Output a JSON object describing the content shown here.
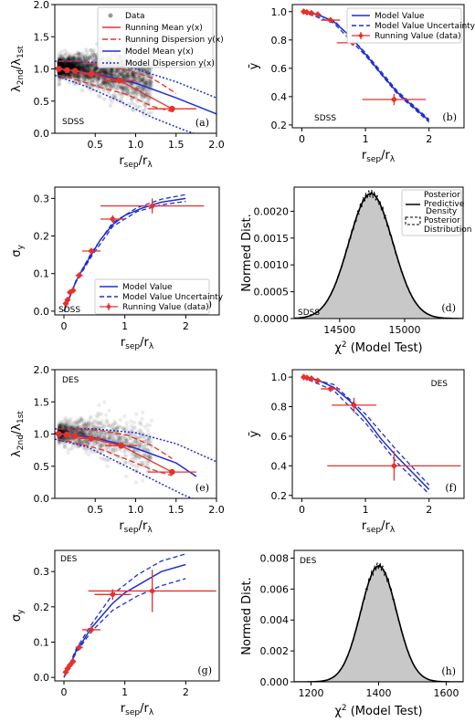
{
  "chart_data": [
    {
      "id": "a",
      "type": "scatter",
      "xlabel": "r_sep/r_λ",
      "ylabel": "λ2nd/λ1st",
      "xlim": [
        0.0,
        2.0
      ],
      "ylim": [
        0.0,
        2.0
      ],
      "xticks": [
        0.5,
        1.0,
        1.5,
        2.0
      ],
      "xticklabels": [
        "0.5",
        "1.0",
        "1.5",
        "2.0"
      ],
      "yticks": [
        0.0,
        0.5,
        1.0,
        1.5,
        2.0
      ],
      "yticklabels": [
        "0.0",
        "0.5",
        "1.0",
        "1.5",
        "2.0"
      ],
      "corner_label": "SDSS",
      "panel_label": "(a)",
      "legend": [
        "Data",
        "Running Mean y(x)",
        "Running Dispersion y(x)",
        "Model Mean y(x)",
        "Model Dispersion y(x)"
      ],
      "colors": {
        "data": "#444444",
        "running": "#e8302a",
        "model": "#2233cc"
      },
      "running_mean": {
        "x": [
          0.05,
          0.15,
          0.25,
          0.45,
          0.8,
          1.45
        ],
        "y": [
          1.0,
          0.98,
          0.97,
          0.92,
          0.82,
          0.38
        ],
        "xerr": [
          [
            0.05,
            0.05
          ],
          [
            0.05,
            0.05
          ],
          [
            0.05,
            0.05
          ],
          [
            0.15,
            0.15
          ],
          [
            0.2,
            0.2
          ],
          [
            0.3,
            0.3
          ]
        ],
        "yerr": [
          0.02,
          0.02,
          0.02,
          0.03,
          0.04,
          0.05
        ]
      },
      "running_dispersion_upper": {
        "x": [
          0.05,
          0.3,
          0.6,
          0.9,
          1.2,
          1.5
        ],
        "y": [
          1.12,
          1.12,
          1.05,
          0.98,
          0.86,
          0.62
        ]
      },
      "running_dispersion_lower": {
        "x": [
          0.05,
          0.3,
          0.6,
          0.9,
          1.2,
          1.5
        ],
        "y": [
          0.9,
          0.82,
          0.7,
          0.6,
          0.42,
          0.32
        ]
      },
      "model_mean": {
        "x": [
          0.0,
          0.5,
          1.0,
          1.5,
          2.0
        ],
        "y": [
          1.02,
          0.92,
          0.78,
          0.55,
          0.3
        ]
      },
      "model_dispersion_upper": {
        "x": [
          0.0,
          0.5,
          1.0,
          1.5,
          2.0
        ],
        "y": [
          1.12,
          1.1,
          1.0,
          0.8,
          0.55
        ]
      },
      "model_dispersion_lower": {
        "x": [
          0.0,
          0.4,
          0.8,
          1.2,
          1.6,
          2.0
        ],
        "y": [
          0.9,
          0.72,
          0.5,
          0.25,
          0.05,
          -0.12
        ]
      }
    },
    {
      "id": "b",
      "type": "line",
      "xlabel": "r_sep/r_λ",
      "ylabel": "ȳ",
      "xlim": [
        -0.15,
        2.55
      ],
      "ylim": [
        0.18,
        1.05
      ],
      "xticks": [
        0,
        1,
        2
      ],
      "xticklabels": [
        "0",
        "1",
        "2"
      ],
      "yticks": [
        0.2,
        0.4,
        0.6,
        0.8,
        1.0
      ],
      "yticklabels": [
        "0.2",
        "0.4",
        "0.6",
        "0.8",
        "1.0"
      ],
      "corner_label": "SDSS",
      "panel_label": "(b)",
      "legend": [
        "Model Value",
        "Model Value Uncertainty",
        "Running Value (data)"
      ],
      "model": {
        "x": [
          0.0,
          0.25,
          0.5,
          0.75,
          1.0,
          1.25,
          1.5,
          1.75,
          2.0
        ],
        "y": [
          1.0,
          0.98,
          0.93,
          0.83,
          0.7,
          0.56,
          0.43,
          0.33,
          0.23
        ]
      },
      "model_unc_upper": {
        "x": [
          0.0,
          0.5,
          1.0,
          1.5,
          2.0
        ],
        "y": [
          1.0,
          0.94,
          0.71,
          0.44,
          0.24
        ]
      },
      "model_unc_lower": {
        "x": [
          0.0,
          0.5,
          1.0,
          1.5,
          2.0
        ],
        "y": [
          1.0,
          0.92,
          0.69,
          0.42,
          0.22
        ]
      },
      "running": {
        "x": [
          0.03,
          0.08,
          0.15,
          0.25,
          0.45,
          0.8,
          1.45
        ],
        "y": [
          1.0,
          0.995,
          0.99,
          0.98,
          0.94,
          0.78,
          0.38
        ],
        "xerr": [
          0.03,
          0.03,
          0.04,
          0.05,
          0.15,
          0.25,
          0.5
        ],
        "yerr": [
          0.01,
          0.01,
          0.01,
          0.01,
          0.015,
          0.02,
          0.04
        ]
      }
    },
    {
      "id": "c",
      "type": "line",
      "xlabel": "r_sep/r_λ",
      "ylabel": "σy",
      "xlim": [
        -0.15,
        2.55
      ],
      "ylim": [
        -0.01,
        0.33
      ],
      "xticks": [
        0,
        1,
        2
      ],
      "xticklabels": [
        "0",
        "1",
        "2"
      ],
      "yticks": [
        0.0,
        0.1,
        0.2,
        0.3
      ],
      "yticklabels": [
        "0.0",
        "0.1",
        "0.2",
        "0.3"
      ],
      "corner_label": "SDSS",
      "panel_label": "(c)",
      "legend": [
        "Model Value",
        "Model Value Uncertainty",
        "Running Value (data)"
      ],
      "model": {
        "x": [
          0.0,
          0.1,
          0.2,
          0.3,
          0.45,
          0.6,
          0.8,
          1.0,
          1.3,
          1.6,
          2.0
        ],
        "y": [
          0.0,
          0.04,
          0.08,
          0.11,
          0.15,
          0.19,
          0.23,
          0.255,
          0.275,
          0.29,
          0.3
        ]
      },
      "model_unc_upper": {
        "x": [
          0.0,
          0.2,
          0.45,
          0.8,
          1.2,
          1.6,
          2.0
        ],
        "y": [
          0.0,
          0.082,
          0.155,
          0.235,
          0.275,
          0.298,
          0.31
        ]
      },
      "model_unc_lower": {
        "x": [
          0.0,
          0.2,
          0.45,
          0.8,
          1.2,
          1.6,
          2.0
        ],
        "y": [
          0.0,
          0.078,
          0.145,
          0.225,
          0.265,
          0.283,
          0.292
        ]
      },
      "running": {
        "x": [
          0.03,
          0.06,
          0.1,
          0.15,
          0.25,
          0.45,
          0.8,
          1.45
        ],
        "y": [
          0.02,
          0.03,
          0.05,
          0.055,
          0.095,
          0.16,
          0.245,
          0.28
        ],
        "xerr": [
          0.03,
          0.03,
          0.03,
          0.04,
          0.06,
          0.15,
          0.2,
          0.85
        ],
        "yerr": [
          0.005,
          0.005,
          0.005,
          0.006,
          0.007,
          0.008,
          0.01,
          0.02
        ]
      }
    },
    {
      "id": "d",
      "type": "area",
      "xlabel": "χ2 (Model Test)",
      "ylabel": "Normed Dist.",
      "xlim": [
        14150,
        15450
      ],
      "ylim": [
        0.0,
        0.00245
      ],
      "xticks": [
        14500,
        15000
      ],
      "xticklabels": [
        "14500",
        "15000"
      ],
      "yticks": [
        0.0,
        0.0005,
        0.001,
        0.0015,
        0.002
      ],
      "yticklabels": [
        "0.0000",
        "0.0005",
        "0.0010",
        "0.0015",
        "0.0020"
      ],
      "corner_label": "SDSS",
      "panel_label": "(d)",
      "legend": [
        "Posterior Predictive Density",
        "Posterior Distribution"
      ],
      "distribution": {
        "mean": 14740,
        "sd": 170,
        "peak": 0.00233
      }
    },
    {
      "id": "e",
      "type": "scatter",
      "xlabel": "r_sep/r_λ",
      "ylabel": "λ2nd/λ1st",
      "xlim": [
        0.0,
        2.0
      ],
      "ylim": [
        0.0,
        2.0
      ],
      "xticks": [
        0.5,
        1.0,
        1.5,
        2.0
      ],
      "xticklabels": [
        "0.5",
        "1.0",
        "1.5",
        "2.0"
      ],
      "yticks": [
        0.0,
        0.5,
        1.0,
        1.5,
        2.0
      ],
      "yticklabels": [
        "0.0",
        "0.5",
        "1.0",
        "1.5",
        "2.0"
      ],
      "corner_label": "DES",
      "panel_label": "(e)",
      "running_mean": {
        "x": [
          0.05,
          0.15,
          0.25,
          0.45,
          0.82,
          1.45
        ],
        "y": [
          1.0,
          0.99,
          0.97,
          0.93,
          0.82,
          0.41
        ],
        "xerr": [
          [
            0.05,
            0.05
          ],
          [
            0.05,
            0.05
          ],
          [
            0.05,
            0.05
          ],
          [
            0.15,
            0.15
          ],
          [
            0.2,
            0.2
          ],
          [
            0.3,
            0.3
          ]
        ]
      },
      "running_dispersion_upper": {
        "x": [
          0.05,
          0.3,
          0.6,
          0.9,
          1.2,
          1.45
        ],
        "y": [
          1.08,
          1.08,
          1.05,
          0.98,
          0.82,
          0.62
        ]
      },
      "running_dispersion_lower": {
        "x": [
          0.05,
          0.3,
          0.6,
          0.9,
          1.2,
          1.45
        ],
        "y": [
          0.92,
          0.85,
          0.75,
          0.6,
          0.45,
          0.35
        ]
      },
      "model_mean": {
        "x": [
          0.0,
          0.5,
          1.0,
          1.5,
          1.75
        ],
        "y": [
          1.02,
          0.94,
          0.78,
          0.55,
          0.34
        ]
      },
      "model_dispersion_upper": {
        "x": [
          0.0,
          0.5,
          1.0,
          1.5,
          2.0
        ],
        "y": [
          1.08,
          1.08,
          1.02,
          0.85,
          0.57
        ]
      },
      "model_dispersion_lower": {
        "x": [
          0.0,
          0.4,
          0.8,
          1.2,
          1.6,
          2.0
        ],
        "y": [
          0.92,
          0.8,
          0.55,
          0.3,
          0.05,
          -0.15
        ]
      }
    },
    {
      "id": "f",
      "type": "line",
      "xlabel": "r_sep/r_λ",
      "ylabel": "ȳ",
      "xlim": [
        -0.15,
        2.55
      ],
      "ylim": [
        0.18,
        1.05
      ],
      "xticks": [
        0,
        1,
        2
      ],
      "xticklabels": [
        "0",
        "1",
        "2"
      ],
      "yticks": [
        0.2,
        0.4,
        0.6,
        0.8,
        1.0
      ],
      "yticklabels": [
        "0.2",
        "0.4",
        "0.6",
        "0.8",
        "1.0"
      ],
      "corner_label": "DES",
      "panel_label": "(f)",
      "model": {
        "x": [
          0.0,
          0.25,
          0.5,
          0.75,
          1.0,
          1.25,
          1.5,
          1.75,
          2.0
        ],
        "y": [
          1.0,
          0.98,
          0.93,
          0.84,
          0.72,
          0.58,
          0.46,
          0.35,
          0.24
        ]
      },
      "model_unc_upper": {
        "x": [
          0.0,
          0.5,
          1.0,
          1.5,
          2.0
        ],
        "y": [
          1.0,
          0.95,
          0.75,
          0.5,
          0.27
        ]
      },
      "model_unc_lower": {
        "x": [
          0.0,
          0.5,
          1.0,
          1.5,
          2.0
        ],
        "y": [
          1.0,
          0.91,
          0.69,
          0.42,
          0.21
        ]
      },
      "running": {
        "x": [
          0.03,
          0.08,
          0.15,
          0.25,
          0.45,
          0.82,
          1.45
        ],
        "y": [
          1.0,
          0.995,
          0.99,
          0.975,
          0.92,
          0.81,
          0.4
        ],
        "xerr": [
          0.03,
          0.03,
          0.04,
          0.05,
          0.15,
          0.35,
          1.05
        ],
        "yerr": [
          0.01,
          0.01,
          0.01,
          0.01,
          0.02,
          0.05,
          0.1
        ]
      }
    },
    {
      "id": "g",
      "type": "line",
      "xlabel": "r_sep/r_λ",
      "ylabel": "σy",
      "xlim": [
        -0.15,
        2.55
      ],
      "ylim": [
        -0.01,
        0.36
      ],
      "xticks": [
        0,
        1,
        2
      ],
      "xticklabels": [
        "0",
        "1",
        "2"
      ],
      "yticks": [
        0.0,
        0.1,
        0.2,
        0.3
      ],
      "yticklabels": [
        "0.0",
        "0.1",
        "0.2",
        "0.3"
      ],
      "corner_label": "DES",
      "panel_label": "(g)",
      "model": {
        "x": [
          0.0,
          0.1,
          0.2,
          0.3,
          0.45,
          0.6,
          0.8,
          1.0,
          1.3,
          1.6,
          2.0
        ],
        "y": [
          0.0,
          0.035,
          0.075,
          0.1,
          0.14,
          0.17,
          0.21,
          0.24,
          0.27,
          0.3,
          0.32
        ]
      },
      "model_unc_upper": {
        "x": [
          0.0,
          0.2,
          0.45,
          0.8,
          1.2,
          1.6,
          2.0
        ],
        "y": [
          0.0,
          0.08,
          0.15,
          0.235,
          0.29,
          0.33,
          0.35
        ]
      },
      "model_unc_lower": {
        "x": [
          0.0,
          0.2,
          0.45,
          0.8,
          1.2,
          1.6,
          2.0
        ],
        "y": [
          0.0,
          0.07,
          0.13,
          0.19,
          0.23,
          0.26,
          0.28
        ]
      },
      "running": {
        "x": [
          0.03,
          0.06,
          0.1,
          0.15,
          0.25,
          0.45,
          0.8,
          1.45
        ],
        "y": [
          0.015,
          0.025,
          0.035,
          0.045,
          0.085,
          0.135,
          0.235,
          0.245
        ],
        "xerr": [
          0.03,
          0.03,
          0.03,
          0.04,
          0.06,
          0.15,
          0.3,
          1.05
        ],
        "yerr": [
          0.005,
          0.005,
          0.006,
          0.007,
          0.008,
          0.01,
          0.015,
          0.06
        ]
      }
    },
    {
      "id": "h",
      "type": "area",
      "xlabel": "χ2 (Model Test)",
      "ylabel": "Normed Dist.",
      "xlim": [
        1150,
        1650
      ],
      "ylim": [
        0.0,
        0.0085
      ],
      "xticks": [
        1200,
        1400,
        1600
      ],
      "xticklabels": [
        "1200",
        "1400",
        "1600"
      ],
      "yticks": [
        0.0,
        0.002,
        0.004,
        0.006,
        0.008
      ],
      "yticklabels": [
        "0.000",
        "0.002",
        "0.004",
        "0.006",
        "0.008"
      ],
      "corner_label": "DES",
      "panel_label": "(h)",
      "distribution": {
        "mean": 1400,
        "sd": 53,
        "peak": 0.0075
      }
    }
  ]
}
